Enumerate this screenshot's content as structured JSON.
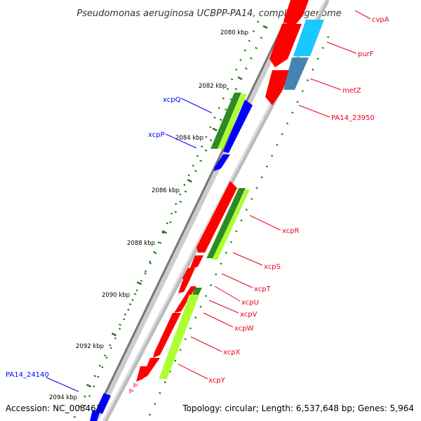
{
  "title": "Pseudomonas aeruginosa UCBPP-PA14, complete genome",
  "footer": {
    "accession": "Accession: NC_008463",
    "summary": "Topology: circular; Length: 6,537,648 bp; Genes: 5,964"
  },
  "axis_ticks": [
    {
      "label": "2080 kbp"
    },
    {
      "label": "2082 kbp"
    },
    {
      "label": "2084 kbp"
    },
    {
      "label": "2086 kbp"
    },
    {
      "label": "2088 kbp"
    },
    {
      "label": "2090 kbp"
    },
    {
      "label": "2092 kbp"
    },
    {
      "label": "2094 kbp"
    }
  ],
  "gene_labels": [
    {
      "name": "cvpA",
      "color": "#e8001c"
    },
    {
      "name": "purF",
      "color": "#e8001c"
    },
    {
      "name": "metZ",
      "color": "#e8001c"
    },
    {
      "name": "PA14_23950",
      "color": "#e8001c"
    },
    {
      "name": "xcpQ",
      "color": "#0000ff"
    },
    {
      "name": "xcpP",
      "color": "#0000ff"
    },
    {
      "name": "xcpR",
      "color": "#e8001c"
    },
    {
      "name": "xcpS",
      "color": "#e8001c"
    },
    {
      "name": "xcpT",
      "color": "#e8001c"
    },
    {
      "name": "xcpU",
      "color": "#e8001c"
    },
    {
      "name": "xcpV",
      "color": "#e8001c"
    },
    {
      "name": "xcpW",
      "color": "#e8001c"
    },
    {
      "name": "xcpX",
      "color": "#e8001c"
    },
    {
      "name": "xcpY",
      "color": "#e8001c"
    },
    {
      "name": "PA14_24140",
      "color": "#0000ff"
    }
  ],
  "colors": {
    "forward_cds": "#ff0000",
    "reverse_cds": "#0000ff",
    "cog_dark_green": "#2e8b22",
    "cog_light_green": "#adff2f",
    "cog_cyan": "#19c8ff",
    "cog_steel": "#4682b4",
    "gc_skew_dots": "#008000",
    "backbone": "#808080"
  }
}
